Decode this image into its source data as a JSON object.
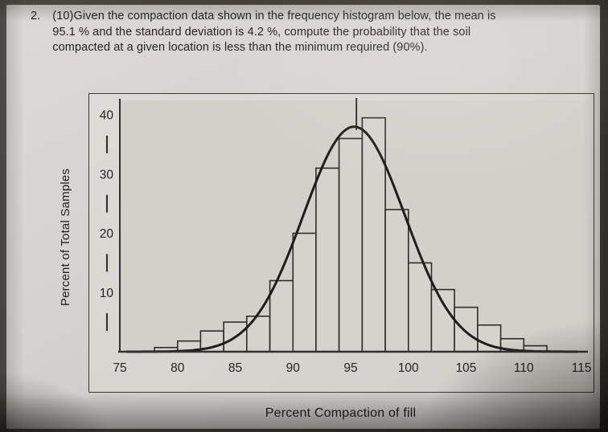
{
  "question": {
    "number": "2.",
    "lines": [
      "(10)Given the compaction data shown in the frequency histogram below, the mean is",
      "95.1 % and the standard deviation is 4.2 %, compute the probability that the soil",
      "compacted at a given location is less than the minimum required (90%)."
    ],
    "given": {
      "points": "(10)",
      "mean": "95.1 %",
      "standard_deviation": "4.2 %",
      "minimum_required": "(90%)"
    }
  },
  "chart_data": {
    "type": "bar",
    "title": "",
    "xlabel": "Percent Compaction of fill",
    "ylabel": "Percent of Total Samples",
    "x_ticks": [
      75,
      80,
      85,
      90,
      95,
      100,
      105,
      110,
      115
    ],
    "y_ticks": [
      10,
      20,
      30,
      40
    ],
    "y_minor_ticks": [
      5,
      15,
      25,
      35
    ],
    "x_range": [
      75,
      115
    ],
    "y_range": [
      0,
      40
    ],
    "grid": false,
    "legend": "none",
    "bin_width": 2,
    "bins": [
      {
        "start": 78,
        "height": 0.7
      },
      {
        "start": 80,
        "height": 1.8
      },
      {
        "start": 82,
        "height": 3.5
      },
      {
        "start": 84,
        "height": 5
      },
      {
        "start": 86,
        "height": 6
      },
      {
        "start": 88,
        "height": 12
      },
      {
        "start": 90,
        "height": 20
      },
      {
        "start": 92,
        "height": 31
      },
      {
        "start": 94,
        "height": 36
      },
      {
        "start": 96,
        "height": 39.5
      },
      {
        "start": 98,
        "height": 24
      },
      {
        "start": 100,
        "height": 15
      },
      {
        "start": 102,
        "height": 10.5
      },
      {
        "start": 104,
        "height": 7.5
      },
      {
        "start": 106,
        "height": 4.5
      },
      {
        "start": 108,
        "height": 2.2
      },
      {
        "start": 110,
        "height": 1
      }
    ],
    "curve": {
      "shape": "normal",
      "mean": 95.3,
      "sd": 4.4,
      "peak": 38
    },
    "mean_line_x": 95.5
  },
  "colors": {
    "axis": "#33312e",
    "bar_outline": "#2f2d2a",
    "bar_fill": "#d6d3cd",
    "plot_bg": "#d3d0ca",
    "curve": "#1e1d1b",
    "text": "#242424"
  }
}
